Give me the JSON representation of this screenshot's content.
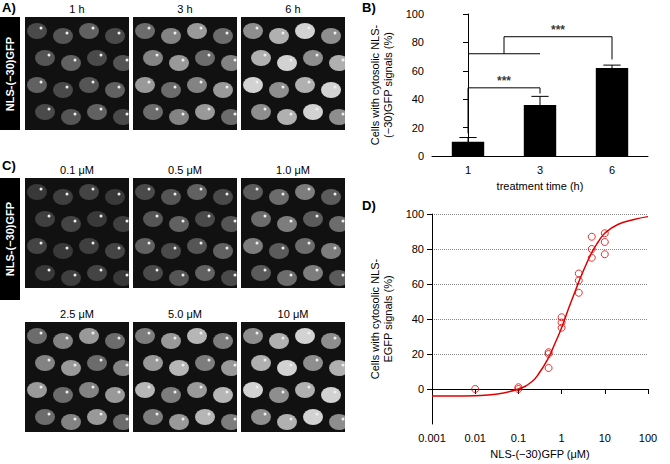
{
  "panels": [
    {
      "label": "A)",
      "side_label": "NLS-(−30)GFP",
      "images": [
        "1 h",
        "3 h",
        "6 h"
      ]
    },
    {
      "label": "C)",
      "side_label": "NLS-(−30)GFP",
      "images": [
        "0.1 μM",
        "0.5 μM",
        "1.0 μM",
        "2.5 μM",
        "5.0 μM",
        "10 μM"
      ]
    }
  ],
  "chart_data": [
    {
      "panel_label": "B)",
      "type": "bar",
      "categories": [
        "1",
        "3",
        "6"
      ],
      "values": [
        10,
        36,
        62
      ],
      "errors": [
        3,
        6,
        2
      ],
      "color": "#000000",
      "x_label": "treatment time (h)",
      "y_label": [
        "Cells with cytosolic NLS-",
        "(−30)GFP signals (%)"
      ],
      "ylim": [
        0,
        100
      ],
      "yticks": [
        0,
        20,
        40,
        60,
        80,
        100
      ],
      "grid": false,
      "annotations": [
        {
          "text": "***",
          "from": "1",
          "to": "3",
          "y": 48,
          "ends": [
            16,
            44
          ]
        },
        {
          "text": "***",
          "from": [
            "1",
            "3"
          ],
          "to": "6",
          "y": 84,
          "ends": [
            72,
            68
          ]
        }
      ]
    },
    {
      "panel_label": "D)",
      "type": "scatter",
      "log": "x",
      "x_label": "NLS-(−30)GFP (μM)",
      "y_label": [
        "Cells with cytosolic NLS-",
        "EGFP signals (%)"
      ],
      "xlim": [
        0.001,
        100
      ],
      "xticks": [
        0.001,
        0.01,
        0.1,
        1,
        10,
        100
      ],
      "ylim": [
        -20,
        100
      ],
      "yticks": [
        0,
        20,
        40,
        60,
        80,
        100
      ],
      "grid": true,
      "series": [
        {
          "type": "scatter",
          "marker": "circle",
          "color": "#e00000",
          "x": [
            0.01,
            0.1,
            0.1,
            0.5,
            0.5,
            0.5,
            1,
            1,
            1,
            2.5,
            2.5,
            2.5,
            5,
            5,
            5,
            10,
            10,
            10
          ],
          "values": [
            0,
            0,
            1,
            12,
            20,
            21,
            35,
            38,
            41,
            55,
            62,
            66,
            75,
            80,
            87,
            77,
            84,
            89
          ]
        },
        {
          "type": "line",
          "line_style": "solid",
          "color": "#e00000",
          "x": [
            0.001,
            0.003,
            0.01,
            0.03,
            0.1,
            0.2,
            0.3,
            0.5,
            0.7,
            1,
            1.5,
            2,
            3,
            5,
            7,
            10,
            20,
            50,
            100
          ],
          "values": [
            -4,
            -4,
            -3.8,
            -3,
            0,
            4,
            9,
            18,
            26,
            35,
            47,
            55,
            66,
            78,
            84,
            89,
            94,
            97,
            98.5
          ]
        }
      ]
    }
  ]
}
